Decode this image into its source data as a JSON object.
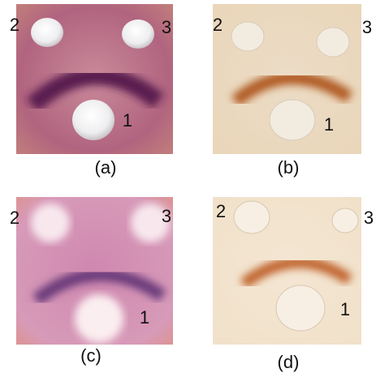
{
  "panels": [
    {
      "caption": "(a)",
      "markers": [
        "1",
        "2",
        "3"
      ]
    },
    {
      "caption": "(b)",
      "markers": [
        "1",
        "2",
        "3"
      ]
    },
    {
      "caption": "(c)",
      "markers": [
        "1",
        "2",
        "3"
      ]
    },
    {
      "caption": "(d)",
      "markers": [
        "1",
        "2",
        "3"
      ]
    }
  ]
}
